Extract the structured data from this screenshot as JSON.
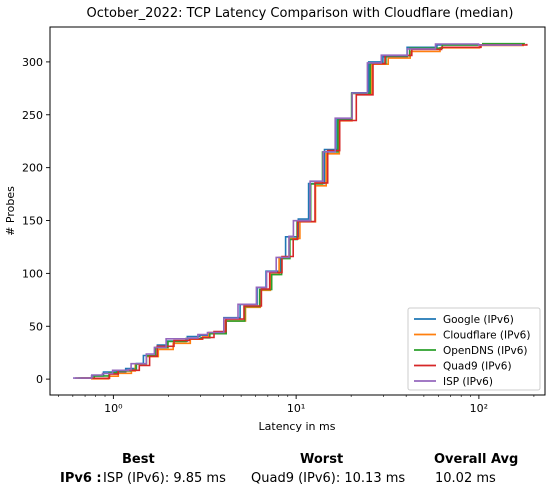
{
  "chart_data": {
    "type": "line",
    "title": "October_2022: TCP Latency Comparison with Cloudflare (median)",
    "xlabel": "Latency in ms",
    "ylabel": "# Probes",
    "xscale": "log",
    "xlim": [
      0.45,
      230
    ],
    "ylim": [
      -15,
      333
    ],
    "xticks": [
      1,
      10,
      100
    ],
    "xtick_labels": [
      "10⁰",
      "10¹",
      "10²"
    ],
    "yticks": [
      0,
      50,
      100,
      150,
      200,
      250,
      300
    ],
    "legend_position": "lower right",
    "grid": false,
    "series": [
      {
        "name": "Google (IPv6)",
        "color": "#1f77b4",
        "x_shift": 0.0,
        "y_jitter": 1
      },
      {
        "name": "Cloudflare (IPv6)",
        "color": "#ff7f0e",
        "x_shift": 0.015,
        "y_jitter": -1
      },
      {
        "name": "OpenDNS (IPv6)",
        "color": "#2ca02c",
        "x_shift": 0.01,
        "y_jitter": 0
      },
      {
        "name": "Quad9 (IPv6)",
        "color": "#d62728",
        "x_shift": 0.02,
        "y_jitter": 0
      },
      {
        "name": "ISP (IPv6)",
        "color": "#9467bd",
        "x_shift": -0.005,
        "y_jitter": 1
      }
    ],
    "base_curve": [
      [
        0.62,
        1
      ],
      [
        0.75,
        2
      ],
      [
        0.9,
        5
      ],
      [
        1.0,
        7
      ],
      [
        1.2,
        8
      ],
      [
        1.3,
        14
      ],
      [
        1.5,
        22
      ],
      [
        1.7,
        30
      ],
      [
        2.0,
        36
      ],
      [
        2.5,
        39
      ],
      [
        3.0,
        40
      ],
      [
        3.3,
        44
      ],
      [
        4.0,
        56
      ],
      [
        5.0,
        70
      ],
      [
        6.0,
        86
      ],
      [
        7.0,
        100
      ],
      [
        8.0,
        115
      ],
      [
        9.0,
        133
      ],
      [
        10.0,
        150
      ],
      [
        12.0,
        185
      ],
      [
        14.0,
        215
      ],
      [
        17.0,
        245
      ],
      [
        20.0,
        270
      ],
      [
        25.0,
        298
      ],
      [
        30.0,
        305
      ],
      [
        40.0,
        312
      ],
      [
        60.0,
        315
      ],
      [
        100.0,
        316
      ],
      [
        170.0,
        317
      ]
    ]
  },
  "summary": {
    "headers": {
      "best": "Best",
      "worst": "Worst",
      "avg": "Overall Avg"
    },
    "row_label": "IPv6 :",
    "best": "ISP (IPv6): 9.85 ms",
    "worst": "Quad9 (IPv6): 10.13 ms",
    "avg": "10.02 ms"
  }
}
